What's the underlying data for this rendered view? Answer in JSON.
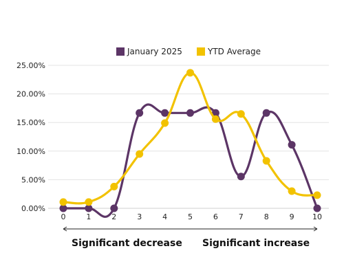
{
  "chart_data": {
    "type": "line",
    "title": "",
    "xlabel": "",
    "ylabel": "",
    "x": [
      0,
      1,
      2,
      3,
      4,
      5,
      6,
      7,
      8,
      9,
      10
    ],
    "ylim": [
      0,
      0.25
    ],
    "ytick_values": [
      0,
      0.05,
      0.1,
      0.15,
      0.2,
      0.25
    ],
    "ytick_labels": [
      "0.00%",
      "5.00%",
      "10.00%",
      "15.00%",
      "20.00%",
      "25.00%"
    ],
    "grid": "horizontal",
    "legend_position": "top-center",
    "series": [
      {
        "name": "January 2025",
        "color": "#5c3566",
        "values": [
          0.0,
          0.0,
          0.0,
          0.1667,
          0.1667,
          0.1667,
          0.1667,
          0.0556,
          0.1667,
          0.1111,
          0.0
        ]
      },
      {
        "name": "YTD Average",
        "color": "#f2c200",
        "values": [
          0.011,
          0.011,
          0.038,
          0.095,
          0.149,
          0.237,
          0.156,
          0.165,
          0.083,
          0.03,
          0.023
        ]
      }
    ],
    "annotations": {
      "left": "Significant decrease",
      "right": "Significant increase"
    }
  }
}
